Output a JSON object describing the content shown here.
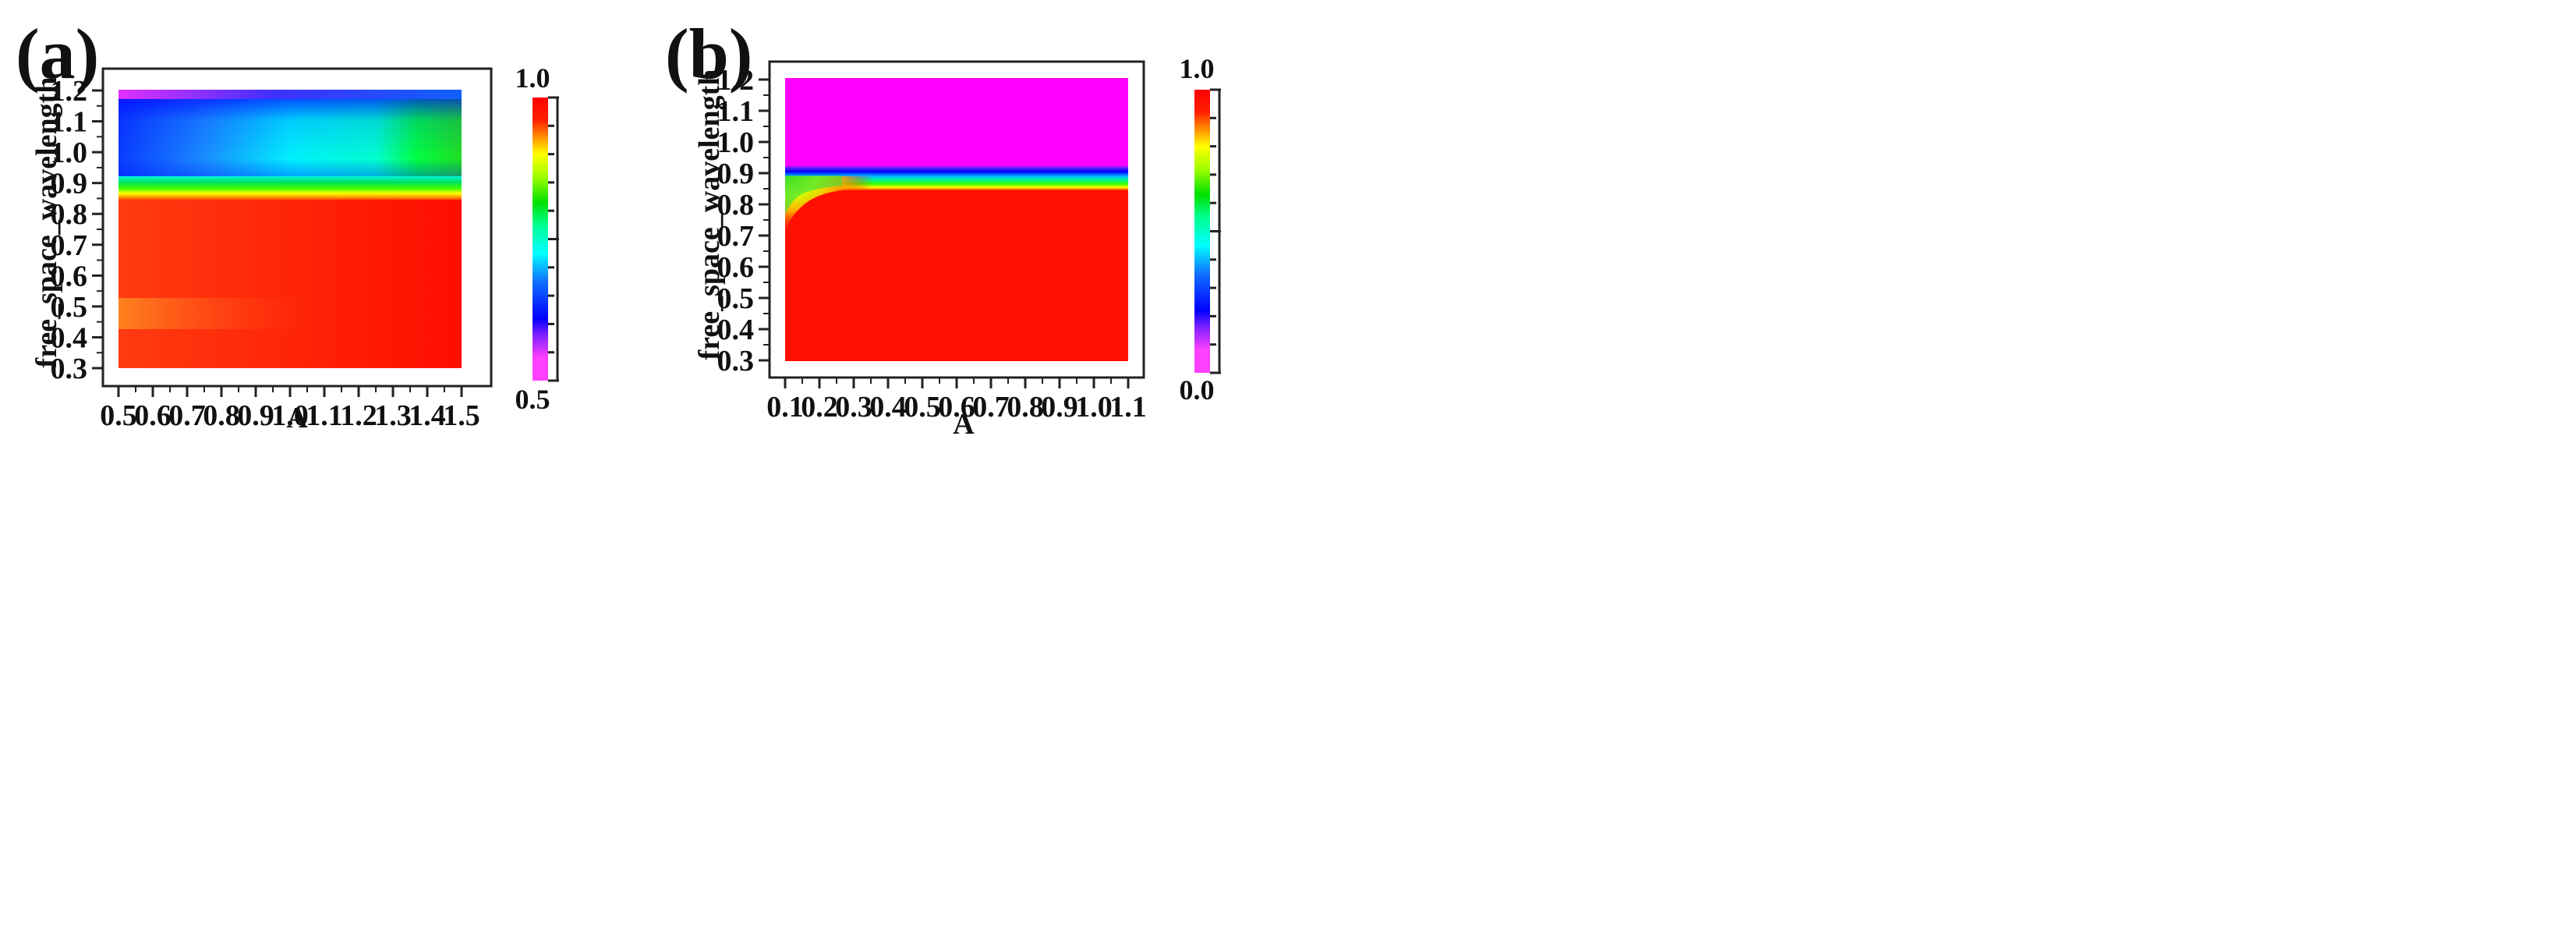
{
  "chart_data": [
    {
      "type": "heatmap",
      "panel_label": "(a)",
      "title": "",
      "xlabel": "A",
      "ylabel": "free_space_wavelength",
      "xlim": [
        0.45,
        1.55
      ],
      "ylim": [
        0.27,
        1.23
      ],
      "x_ticks": [
        "0.5",
        "0.6",
        "0.7",
        "0.8",
        "0.9",
        "1.0",
        "1.1",
        "1.2",
        "1.3",
        "1.4",
        "1.5"
      ],
      "y_ticks": [
        "0.3",
        "0.4",
        "0.5",
        "0.6",
        "0.7",
        "0.8",
        "0.9",
        "1.0",
        "1.1",
        "1.2"
      ],
      "x_range": [
        0.5,
        1.5
      ],
      "y_range": [
        0.3,
        1.2
      ],
      "colorbar": {
        "min_label": "0.5",
        "max_label": "1.0",
        "min": 0.5,
        "max": 1.0
      },
      "regions": [
        {
          "y_from": 0.3,
          "y_to": 0.84,
          "value_start": 0.97,
          "value_end": 1.0,
          "desc": "red"
        },
        {
          "y_from": 0.84,
          "y_to": 0.86,
          "value_start": 0.88,
          "value_end": 0.88,
          "desc": "yellow"
        },
        {
          "y_from": 0.86,
          "y_to": 0.9,
          "value_start": 0.8,
          "value_end": 0.8,
          "desc": "green"
        },
        {
          "y_from": 0.9,
          "y_to": 0.93,
          "value_start": 0.73,
          "value_end": 0.73,
          "desc": "cyan"
        },
        {
          "y_from": 0.93,
          "y_to": 1.15,
          "value_start": 0.6,
          "value_end": 0.8,
          "desc": "blue to cyan to green"
        },
        {
          "y_from": 1.15,
          "y_to": 1.2,
          "value_start": 0.55,
          "value_end": 0.6,
          "desc": "blue/magenta edge"
        }
      ]
    },
    {
      "type": "heatmap",
      "panel_label": "(b)",
      "title": "",
      "xlabel": "A",
      "ylabel": "free_space_wavelength",
      "xlim": [
        0.05,
        1.15
      ],
      "ylim": [
        0.27,
        1.23
      ],
      "x_ticks": [
        "0.1",
        "0.2",
        "0.3",
        "0.4",
        "0.5",
        "0.6",
        "0.7",
        "0.8",
        "0.9",
        "1.0",
        "1.1"
      ],
      "y_ticks": [
        "0.3",
        "0.4",
        "0.5",
        "0.6",
        "0.7",
        "0.8",
        "0.9",
        "1.0",
        "1.1",
        "1.2"
      ],
      "x_range": [
        0.1,
        1.1
      ],
      "y_range": [
        0.3,
        1.2
      ],
      "colorbar": {
        "min_label": "0.0",
        "max_label": "1.0",
        "min": 0.0,
        "max": 1.0
      },
      "regions": [
        {
          "y_from": 0.3,
          "y_to": 0.85,
          "value_start": 1.0,
          "value_end": 1.0,
          "desc": "red (yellow/green near A=0.1 above 0.7)"
        },
        {
          "y_from": 0.85,
          "y_to": 0.86,
          "value_start": 0.75,
          "value_end": 0.75,
          "desc": "yellow"
        },
        {
          "y_from": 0.86,
          "y_to": 0.89,
          "value_start": 0.5,
          "value_end": 0.5,
          "desc": "green/cyan"
        },
        {
          "y_from": 0.89,
          "y_to": 0.92,
          "value_start": 0.2,
          "value_end": 0.2,
          "desc": "blue"
        },
        {
          "y_from": 0.92,
          "y_to": 1.2,
          "value_start": 0.0,
          "value_end": 0.0,
          "desc": "magenta"
        }
      ]
    }
  ]
}
